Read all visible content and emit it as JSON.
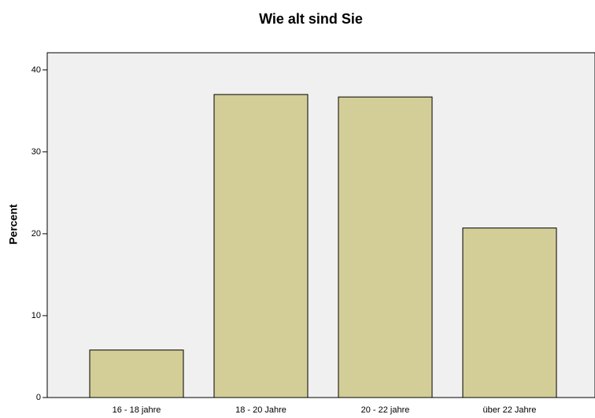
{
  "chart_data": {
    "type": "bar",
    "title": "Wie alt sind Sie",
    "y_label": "Percent",
    "categories": [
      "16 - 18 jahre",
      "18 - 20 Jahre",
      "20 - 22 jahre",
      "über 22 Jahre"
    ],
    "values": [
      5.8,
      37.0,
      36.7,
      20.7
    ],
    "color": "#d3ce97",
    "ylim": [
      0,
      42.1
    ],
    "yticks": [
      0,
      10,
      20,
      30,
      40
    ],
    "grid": false
  }
}
